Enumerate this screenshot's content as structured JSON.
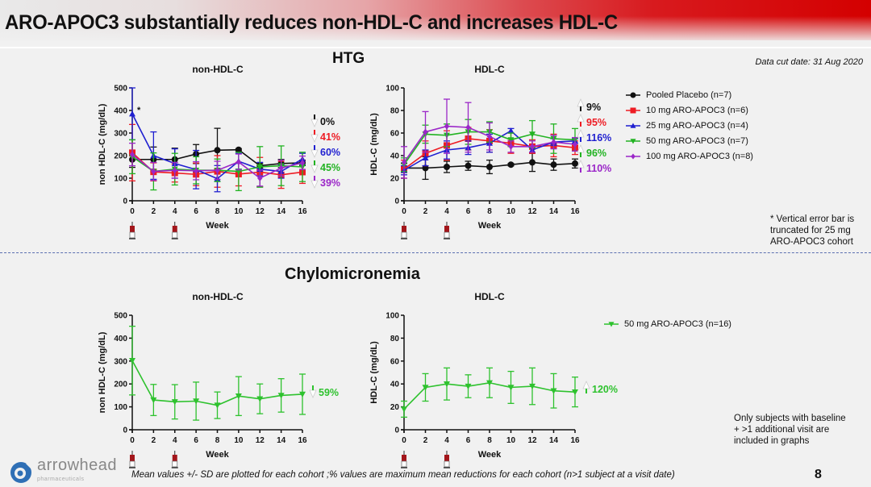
{
  "header": {
    "title": "ARO-APOC3 substantially reduces non-HDL-C and increases HDL-C"
  },
  "sections": {
    "htg": "HTG",
    "chylo": "Chylomicronemia"
  },
  "data_cut_date": "Data cut date: 31 Aug 2020",
  "notes": {
    "truncation": [
      "* Vertical error bar is",
      "truncated for 25 mg",
      "ARO-APOC3 cohort"
    ],
    "subjects": [
      "Only subjects with baseline",
      "+ >1 additional visit are",
      "included in graphs"
    ]
  },
  "footer": {
    "text": "Mean values +/- SD are plotted for each cohort ;% values are maximum mean reductions for each cohort  (n>1 subject at a visit date)",
    "page_number": "8"
  },
  "logo": {
    "name": "arrowhead",
    "subtitle": "pharmaceuticals"
  },
  "colors": {
    "placebo": "#111111",
    "mg10": "#ee1c24",
    "mg25": "#1f1fd0",
    "mg50": "#22b322",
    "mg100": "#9b27c8",
    "chylo": "#2ec22e"
  },
  "htg_legend": [
    {
      "label": "Pooled Placebo (n=7)",
      "color": "#111111",
      "marker": "circle"
    },
    {
      "label": "10 mg ARO-APOC3 (n=6)",
      "color": "#ee1c24",
      "marker": "square"
    },
    {
      "label": "25 mg ARO-APOC3 (n=4)",
      "color": "#1f1fd0",
      "marker": "triangle-up"
    },
    {
      "label": "50 mg ARO-APOC3 (n=7)",
      "color": "#22b322",
      "marker": "triangle-down"
    },
    {
      "label": "100 mg ARO-APOC3 (n=8)",
      "color": "#9b27c8",
      "marker": "diamond"
    }
  ],
  "chylo_legend": [
    {
      "label": "50 mg ARO-APOC3 (n=16)",
      "color": "#2ec22e",
      "marker": "triangle-down"
    }
  ],
  "dosing_weeks": [
    0,
    4
  ],
  "chart_data": [
    {
      "id": "htg-nonhdl",
      "type": "line",
      "title": "non-HDL-C",
      "xlabel": "Week",
      "ylabel": "non HDL-C (mg/dL)",
      "x": [
        0,
        2,
        4,
        6,
        8,
        10,
        12,
        14,
        16
      ],
      "xticks": [
        "0",
        "2",
        "4",
        "6",
        "8",
        "10",
        "12",
        "14",
        "16"
      ],
      "yticks": [
        "0",
        "100",
        "200",
        "300",
        "400",
        "500"
      ],
      "ylim": [
        0,
        500
      ],
      "annotation": "*",
      "series": [
        {
          "name": "Pooled Placebo (n=7)",
          "color": "#111111",
          "marker": "circle",
          "values": [
            183,
            183,
            183,
            207,
            224,
            226,
            155,
            165,
            168
          ],
          "sd": [
            35,
            55,
            50,
            42,
            97,
            5,
            10,
            18,
            12
          ]
        },
        {
          "name": "10 mg ARO-APOC3 (n=6)",
          "color": "#ee1c24",
          "marker": "square",
          "values": [
            213,
            128,
            123,
            117,
            130,
            118,
            127,
            115,
            127
          ],
          "sd": [
            125,
            40,
            40,
            50,
            70,
            52,
            65,
            60,
            50
          ]
        },
        {
          "name": "25 mg ARO-APOC3 (n=4)",
          "color": "#1f1fd0",
          "marker": "triangle-up",
          "values": [
            385,
            200,
            165,
            138,
            98,
            175,
            140,
            130,
            185
          ],
          "sd": [
            115,
            105,
            65,
            85,
            58,
            35,
            30,
            30,
            25
          ]
        },
        {
          "name": "50 mg ARO-APOC3 (n=7)",
          "color": "#22b322",
          "marker": "triangle-down",
          "values": [
            195,
            130,
            140,
            135,
            135,
            130,
            150,
            155,
            150
          ],
          "sd": [
            75,
            82,
            70,
            60,
            50,
            85,
            90,
            88,
            65
          ]
        },
        {
          "name": "100 mg ARO-APOC3 (n=8)",
          "color": "#9b27c8",
          "marker": "diamond",
          "values": [
            205,
            130,
            135,
            133,
            135,
            172,
            100,
            145,
            168
          ],
          "sd": [
            50,
            40,
            35,
            40,
            40,
            35,
            35,
            35,
            30
          ]
        }
      ],
      "pct_labels": [
        {
          "text": "0%",
          "color": "#111111",
          "direction": "down"
        },
        {
          "text": "41%",
          "color": "#ee1c24",
          "direction": "down"
        },
        {
          "text": "60%",
          "color": "#1f1fd0",
          "direction": "down"
        },
        {
          "text": "45%",
          "color": "#22b322",
          "direction": "down"
        },
        {
          "text": "39%",
          "color": "#9b27c8",
          "direction": "down"
        }
      ]
    },
    {
      "id": "htg-hdl",
      "type": "line",
      "title": "HDL-C",
      "xlabel": "Week",
      "ylabel": "HDL-C (mg/dL)",
      "x": [
        0,
        2,
        4,
        6,
        8,
        10,
        12,
        14,
        16
      ],
      "xticks": [
        "0",
        "2",
        "4",
        "6",
        "8",
        "10",
        "12",
        "14",
        "16"
      ],
      "yticks": [
        "0",
        "20",
        "40",
        "60",
        "80",
        "100"
      ],
      "ylim": [
        0,
        100
      ],
      "series": [
        {
          "name": "Pooled Placebo (n=7)",
          "color": "#111111",
          "marker": "circle",
          "values": [
            29,
            29,
            30,
            31,
            30,
            32,
            34,
            32,
            33
          ],
          "sd": [
            4,
            10,
            5,
            4,
            6,
            1,
            8,
            5,
            4
          ]
        },
        {
          "name": "10 mg ARO-APOC3 (n=6)",
          "color": "#ee1c24",
          "marker": "square",
          "values": [
            28,
            42,
            49,
            55,
            53,
            51,
            48,
            49,
            47
          ],
          "sd": [
            8,
            11,
            13,
            10,
            10,
            9,
            6,
            10,
            6
          ]
        },
        {
          "name": "25 mg ARO-APOC3 (n=4)",
          "color": "#1f1fd0",
          "marker": "triangle-up",
          "values": [
            27,
            38,
            45,
            47,
            51,
            62,
            45,
            52,
            53
          ],
          "sd": [
            4,
            7,
            8,
            6,
            8,
            2,
            2,
            3,
            2
          ]
        },
        {
          "name": "50 mg ARO-APOC3 (n=7)",
          "color": "#22b322",
          "marker": "triangle-down",
          "values": [
            32,
            59,
            58,
            61,
            61,
            54,
            59,
            55,
            54
          ],
          "sd": [
            6,
            8,
            10,
            11,
            9,
            6,
            12,
            13,
            10
          ]
        },
        {
          "name": "100 mg ARO-APOC3 (n=8)",
          "color": "#9b27c8",
          "marker": "diamond",
          "values": [
            34,
            61,
            66,
            65,
            57,
            48,
            48,
            52,
            50
          ],
          "sd": [
            14,
            18,
            24,
            22,
            12,
            5,
            5,
            6,
            6
          ]
        }
      ],
      "pct_labels": [
        {
          "text": "9%",
          "color": "#111111",
          "direction": "up"
        },
        {
          "text": "95%",
          "color": "#ee1c24",
          "direction": "up"
        },
        {
          "text": "116%",
          "color": "#1f1fd0",
          "direction": "up"
        },
        {
          "text": "96%",
          "color": "#22b322",
          "direction": "up"
        },
        {
          "text": "110%",
          "color": "#9b27c8",
          "direction": "up"
        }
      ]
    },
    {
      "id": "chylo-nonhdl",
      "type": "line",
      "title": "non-HDL-C",
      "xlabel": "Week",
      "ylabel": "non HDL-C (mg/dL)",
      "x": [
        0,
        2,
        4,
        6,
        8,
        10,
        12,
        14,
        16
      ],
      "xticks": [
        "0",
        "2",
        "4",
        "6",
        "8",
        "10",
        "12",
        "14",
        "16"
      ],
      "yticks": [
        "0",
        "100",
        "200",
        "300",
        "400",
        "500"
      ],
      "ylim": [
        0,
        500
      ],
      "series": [
        {
          "name": "50 mg ARO-APOC3 (n=16)",
          "color": "#2ec22e",
          "marker": "triangle-down",
          "values": [
            302,
            130,
            122,
            125,
            107,
            147,
            135,
            150,
            155
          ],
          "sd": [
            150,
            68,
            75,
            83,
            58,
            85,
            65,
            73,
            88
          ]
        }
      ],
      "pct_labels": [
        {
          "text": "59%",
          "color": "#2ec22e",
          "direction": "down"
        }
      ]
    },
    {
      "id": "chylo-hdl",
      "type": "line",
      "title": "HDL-C",
      "xlabel": "Week",
      "ylabel": "HDL-C (mg/dL)",
      "x": [
        0,
        2,
        4,
        6,
        8,
        10,
        12,
        14,
        16
      ],
      "xticks": [
        "0",
        "2",
        "4",
        "6",
        "8",
        "10",
        "12",
        "14",
        "16"
      ],
      "yticks": [
        "0",
        "20",
        "40",
        "60",
        "80",
        "100"
      ],
      "ylim": [
        0,
        100
      ],
      "series": [
        {
          "name": "50 mg ARO-APOC3 (n=16)",
          "color": "#2ec22e",
          "marker": "triangle-down",
          "values": [
            18,
            37,
            40,
            38,
            41,
            37,
            38,
            34,
            33
          ],
          "sd": [
            7,
            12,
            14,
            10,
            13,
            14,
            16,
            15,
            13
          ]
        }
      ],
      "pct_labels": [
        {
          "text": "120%",
          "color": "#2ec22e",
          "direction": "up"
        }
      ]
    }
  ]
}
